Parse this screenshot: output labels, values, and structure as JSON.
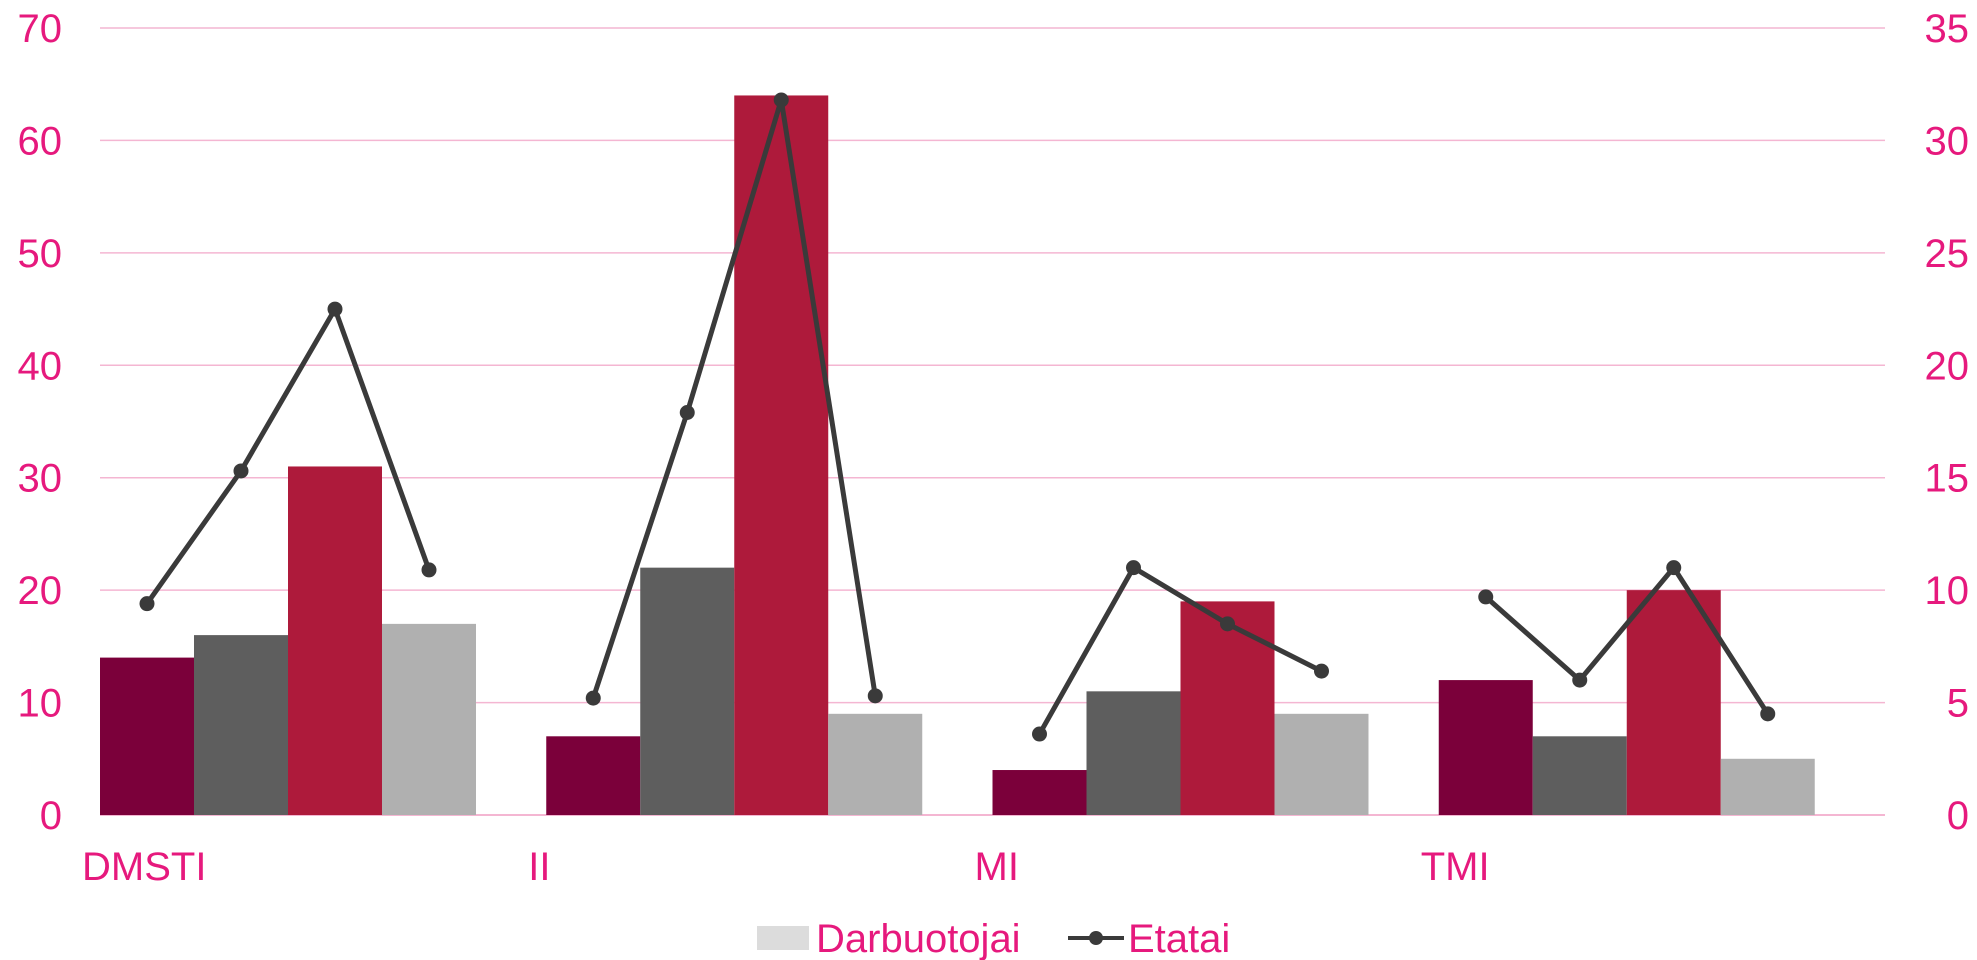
{
  "chart_data": {
    "type": "bar",
    "categories": [
      "DMSTI",
      "II",
      "MI",
      "TMI"
    ],
    "bar_series": [
      {
        "values": [
          14,
          7,
          4,
          12
        ],
        "color": "#7B003A"
      },
      {
        "values": [
          16,
          22,
          11,
          7
        ],
        "color": "#5E5E5E"
      },
      {
        "values": [
          31,
          64,
          19,
          20
        ],
        "color": "#AE1A3B"
      },
      {
        "name": "Darbuotojai",
        "values": [
          17,
          9,
          9,
          5
        ],
        "color": "#B0B0B0"
      }
    ],
    "line_series": {
      "name": "Etatai",
      "axis": "right",
      "values": [
        [
          9.4,
          15.3,
          22.5,
          10.9
        ],
        [
          5.2,
          17.9,
          31.8,
          5.3
        ],
        [
          3.6,
          11.0,
          8.5,
          6.4
        ],
        [
          9.7,
          6.0,
          11.0,
          4.5
        ]
      ],
      "color": "#3A3A3A"
    },
    "y_left": {
      "ylim": [
        0,
        70
      ],
      "ticks": [
        "0",
        "10",
        "20",
        "30",
        "40",
        "50",
        "60",
        "70"
      ]
    },
    "y_right": {
      "ylim": [
        0,
        35
      ],
      "ticks": [
        "0",
        "5",
        "10",
        "15",
        "20",
        "25",
        "30",
        "35"
      ]
    },
    "grid": true,
    "legend": {
      "position": "bottom",
      "items": [
        "Darbuotojai",
        "Etatai"
      ],
      "swatch_color": "#DCDCDC"
    },
    "colors": {
      "axis_text": "#E6197D",
      "grid": "#F4B6D2"
    }
  }
}
